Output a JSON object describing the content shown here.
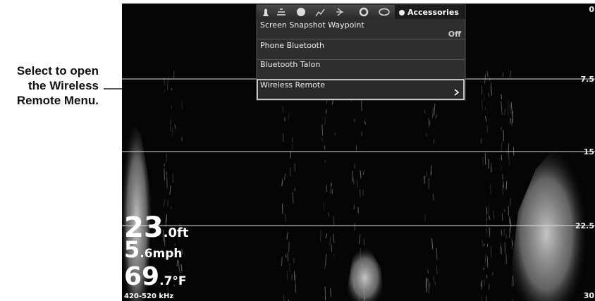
{
  "callout": {
    "lines": [
      "Select to open",
      "the Wireless",
      "Remote Menu."
    ]
  },
  "menu": {
    "active_tab": "Accessories",
    "items": [
      {
        "label": "Screen Snapshot Waypoint",
        "value": "Off"
      },
      {
        "label": "Phone Bluetooth"
      },
      {
        "label": "Bluetooth Talon"
      },
      {
        "label": "Wireless Remote"
      }
    ]
  },
  "depth_scale": [
    "0",
    "7.5",
    "15",
    "22.5",
    "30"
  ],
  "readouts": [
    {
      "whole": "23",
      "fraction": ".0ft"
    },
    {
      "whole": "5",
      "fraction": ".6mph"
    },
    {
      "whole": "69",
      "fraction": ".7°F"
    }
  ],
  "frequency": "420-520 kHz"
}
